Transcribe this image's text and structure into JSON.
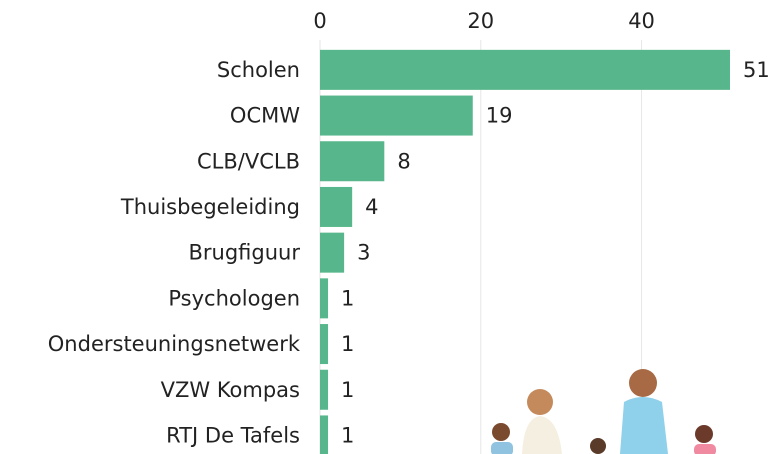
{
  "chart_data": {
    "type": "bar",
    "orientation": "horizontal",
    "categories": [
      "Scholen",
      "OCMW",
      "CLB/VCLB",
      "Thuisbegeleiding",
      "Brugfiguur",
      "Psychologen",
      "Ondersteuningsnetwerk",
      "VZW Kompas",
      "RTJ De Tafels"
    ],
    "values": [
      51,
      19,
      8,
      4,
      3,
      1,
      1,
      1,
      1
    ],
    "color": "#57b68b",
    "xlim": [
      0,
      51
    ],
    "xticks": [
      0,
      20,
      40
    ],
    "grid": true,
    "x_axis_position": "top"
  }
}
